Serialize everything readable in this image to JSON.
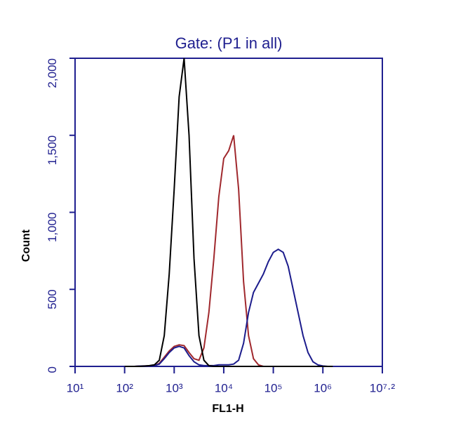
{
  "chart_data": {
    "type": "line",
    "title": "Gate: (P1 in all)",
    "x_label": "FL1-H",
    "y_label": "Count",
    "xscale": "log",
    "xlim": [
      10,
      15848932
    ],
    "xticks": [
      {
        "value": 10,
        "label": "10¹"
      },
      {
        "value": 100,
        "label": "10²"
      },
      {
        "value": 1000,
        "label": "10³"
      },
      {
        "value": 10000,
        "label": "10⁴"
      },
      {
        "value": 100000,
        "label": "10⁵"
      },
      {
        "value": 1000000,
        "label": "10⁶"
      },
      {
        "value": 15848932,
        "label": "10⁷·²"
      }
    ],
    "ylim": [
      0,
      2000
    ],
    "yticks": [
      0,
      500,
      {
        "value": 1000,
        "label": "1,000"
      },
      {
        "value": 1500,
        "label": "1,500"
      },
      {
        "value": 2000,
        "label": "2,000"
      }
    ],
    "axis_color": "#1f1f8f",
    "x": [
      100,
      126,
      158,
      200,
      251,
      316,
      398,
      501,
      631,
      794,
      1000,
      1259,
      1585,
      1995,
      2512,
      3162,
      3981,
      5012,
      6310,
      7943,
      10000,
      12589,
      15849,
      19953,
      25119,
      31623,
      39811,
      50119,
      63096,
      79433,
      100000,
      125893,
      158489,
      199526,
      251189,
      316228,
      398107,
      501187,
      630957,
      794328,
      1000000,
      1258925,
      1584893
    ],
    "series": [
      {
        "color": "#a0282d",
        "values": [
          0,
          0,
          0,
          2,
          3,
          4,
          5,
          20,
          60,
          100,
          130,
          140,
          135,
          90,
          50,
          40,
          120,
          350,
          700,
          1100,
          1350,
          1400,
          1500,
          1150,
          550,
          200,
          50,
          10,
          0,
          0,
          0,
          0,
          0,
          0,
          0,
          0,
          0,
          0,
          0,
          0,
          0,
          0,
          0
        ]
      },
      {
        "color": "#1c1c8c",
        "values": [
          0,
          0,
          0,
          2,
          3,
          4,
          5,
          15,
          50,
          90,
          120,
          130,
          120,
          70,
          30,
          10,
          5,
          5,
          5,
          10,
          10,
          10,
          15,
          40,
          150,
          350,
          480,
          540,
          600,
          680,
          740,
          760,
          740,
          650,
          500,
          350,
          200,
          90,
          30,
          10,
          3,
          0,
          0
        ]
      },
      {
        "color": "#000000",
        "values": [
          0,
          0,
          0,
          0,
          2,
          5,
          10,
          40,
          200,
          600,
          1150,
          1750,
          2000,
          1500,
          700,
          200,
          40,
          5,
          0,
          0,
          0,
          0,
          0,
          0,
          0,
          0,
          0,
          0,
          0,
          0,
          0,
          0,
          0,
          0,
          0,
          0,
          0,
          0,
          0,
          0,
          0,
          0,
          0
        ]
      }
    ]
  }
}
